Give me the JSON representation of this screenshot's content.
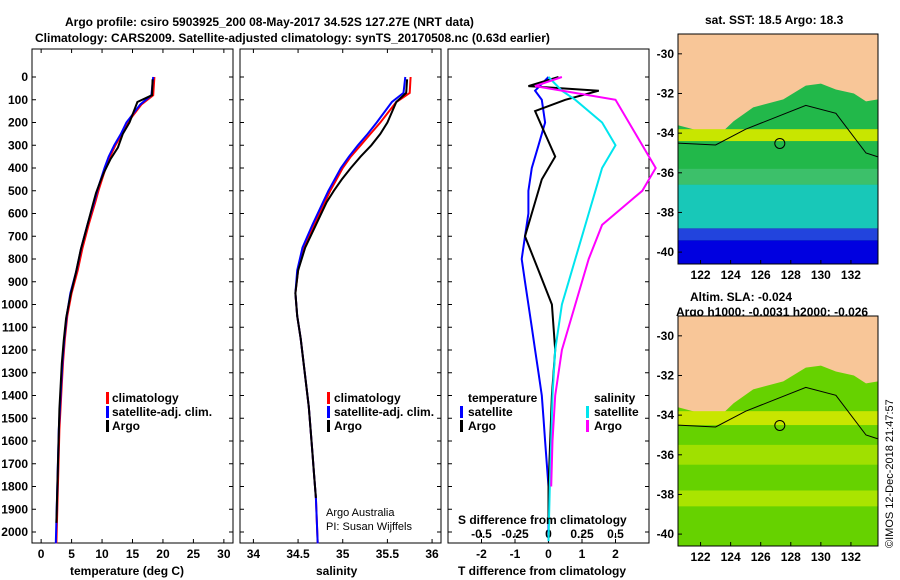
{
  "title": {
    "line1": "Argo profile: csiro 5903925_200 08-May-2017 34.52S 127.27E (NRT data)",
    "line2": "Climatology: CARS2009. Satellite-adjusted climatology: synTS_20170508.nc (0.63d earlier)"
  },
  "credit": {
    "line1": "Argo Australia",
    "line2": "PI: Susan Wijffels"
  },
  "side_stamp": "©IMOS 12-Dec-2018 21:47:57",
  "colors": {
    "climatology": "#ff0000",
    "satellite": "#0000ff",
    "argo": "#000000",
    "sal_satellite": "#00e5ee",
    "sal_argo": "#ff00ff",
    "land": "#f8c698"
  },
  "chart_data": [
    {
      "type": "line",
      "id": "temperature",
      "xlabel": "temperature (deg C)",
      "ylabel": "",
      "xlim": [
        -1.5,
        31.5
      ],
      "ylim": [
        2080,
        0
      ],
      "xticks": [
        "0",
        "5",
        "10",
        "15",
        "20",
        "25",
        "30"
      ],
      "yticks": [
        "0",
        "100",
        "200",
        "300",
        "400",
        "500",
        "600",
        "700",
        "800",
        "900",
        "1000",
        "1100",
        "1200",
        "1300",
        "1400",
        "1500",
        "1600",
        "1700",
        "1800",
        "1900",
        "2000"
      ],
      "legend": [
        "climatology",
        "satellite-adj. clim.",
        "Argo"
      ],
      "legend_position": "lower-right",
      "series": [
        {
          "name": "climatology",
          "color": "#ff0000",
          "x": [
            18.6,
            18.4,
            16.5,
            14.2,
            13.3,
            12.2,
            11.3,
            10.6,
            10.0,
            9.4,
            8.9,
            7.8,
            6.8,
            6.0,
            5.0,
            4.3,
            3.9,
            3.6,
            3.4,
            3.2,
            3.0,
            2.9,
            2.8,
            2.7,
            2.6,
            2.5
          ],
          "y": [
            0,
            80,
            120,
            200,
            250,
            300,
            350,
            400,
            450,
            500,
            550,
            650,
            750,
            850,
            950,
            1050,
            1150,
            1250,
            1350,
            1450,
            1550,
            1650,
            1750,
            1850,
            1950,
            2050
          ]
        },
        {
          "name": "satellite-adj. clim.",
          "color": "#0000ff",
          "x": [
            18.4,
            18.1,
            16.3,
            14.0,
            13.1,
            12.0,
            11.1,
            10.4,
            9.8,
            9.2,
            8.7,
            7.6,
            6.6,
            5.8,
            4.8,
            4.2,
            3.8,
            3.5,
            3.3,
            3.1,
            2.9,
            2.8,
            2.7,
            2.6,
            2.5,
            2.4
          ],
          "y": [
            0,
            80,
            120,
            200,
            250,
            300,
            350,
            400,
            450,
            500,
            550,
            650,
            750,
            850,
            950,
            1050,
            1150,
            1250,
            1350,
            1450,
            1550,
            1650,
            1750,
            1850,
            1950,
            2050
          ]
        },
        {
          "name": "Argo",
          "color": "#000000",
          "x": [
            18.3,
            18.2,
            15.8,
            14.5,
            13.4,
            12.6,
            11.4,
            10.3,
            9.7,
            9.0,
            8.5,
            7.5,
            6.5,
            5.7,
            4.8,
            4.1,
            3.7,
            3.4,
            3.2,
            3.0,
            2.9,
            2.8,
            2.7,
            2.6,
            2.5
          ],
          "y": [
            10,
            80,
            110,
            200,
            250,
            310,
            360,
            420,
            460,
            510,
            560,
            660,
            760,
            860,
            960,
            1060,
            1160,
            1260,
            1360,
            1460,
            1560,
            1660,
            1760,
            1860,
            1960
          ]
        }
      ]
    },
    {
      "type": "line",
      "id": "salinity",
      "xlabel": "salinity",
      "xlim": [
        33.85,
        36.1
      ],
      "ylim": [
        2080,
        0
      ],
      "xticks": [
        "34",
        "34.5",
        "35",
        "35.5",
        "36"
      ],
      "legend": [
        "climatology",
        "satellite-adj. clim.",
        "Argo"
      ],
      "legend_position": "lower-right",
      "series": [
        {
          "name": "climatology",
          "color": "#ff0000",
          "x": [
            35.76,
            35.75,
            35.6,
            35.42,
            35.31,
            35.2,
            35.09,
            35.0,
            34.93,
            34.86,
            34.8,
            34.68,
            34.56,
            34.5,
            34.47,
            34.49,
            34.53,
            34.56,
            34.59,
            34.62,
            34.64,
            34.66,
            34.68,
            34.7,
            34.72
          ],
          "y": [
            0,
            70,
            110,
            200,
            250,
            300,
            350,
            400,
            450,
            500,
            550,
            650,
            750,
            850,
            950,
            1050,
            1150,
            1250,
            1350,
            1450,
            1550,
            1650,
            1750,
            1850,
            2050
          ]
        },
        {
          "name": "satellite-adj. clim.",
          "color": "#0000ff",
          "x": [
            35.7,
            35.68,
            35.55,
            35.38,
            35.28,
            35.17,
            35.07,
            34.98,
            34.91,
            34.84,
            34.78,
            34.66,
            34.55,
            34.49,
            34.47,
            34.49,
            34.53,
            34.56,
            34.59,
            34.62,
            34.64,
            34.66,
            34.68,
            34.7,
            34.72
          ],
          "y": [
            0,
            70,
            110,
            200,
            250,
            300,
            350,
            400,
            450,
            500,
            550,
            650,
            750,
            850,
            950,
            1050,
            1150,
            1250,
            1350,
            1450,
            1550,
            1650,
            1750,
            1850,
            2050
          ]
        },
        {
          "name": "Argo",
          "color": "#000000",
          "x": [
            35.72,
            35.71,
            35.6,
            35.5,
            35.42,
            35.32,
            35.2,
            35.09,
            34.99,
            34.9,
            34.82,
            34.7,
            34.58,
            34.5,
            34.47,
            34.49,
            34.53,
            34.56,
            34.59,
            34.62,
            34.64,
            34.66,
            34.68,
            34.7
          ],
          "y": [
            10,
            70,
            110,
            200,
            250,
            300,
            350,
            400,
            450,
            500,
            550,
            650,
            750,
            850,
            950,
            1050,
            1150,
            1250,
            1350,
            1450,
            1550,
            1650,
            1750,
            1850
          ]
        }
      ]
    },
    {
      "type": "line",
      "id": "difference",
      "xlabel": "T difference from climatology",
      "xlabel2": "S difference from climatology",
      "xlim": [
        -3,
        3
      ],
      "xticks": [
        "-2",
        "-1",
        "0",
        "1",
        "2"
      ],
      "xticks2": [
        "-0.5",
        "-0.25",
        "0",
        "0.25",
        "0.5"
      ],
      "ylim": [
        2080,
        0
      ],
      "legend_left_title": "temperature",
      "legend_right_title": "salinity",
      "legend_left": [
        "satellite",
        "Argo"
      ],
      "legend_right": [
        "satellite",
        "Argo"
      ],
      "series": [
        {
          "name": "satellite",
          "group": "temperature",
          "color": "#0000ff",
          "x": [
            0,
            -0.4,
            -0.2,
            -0.1,
            -0.3,
            -0.5,
            -0.6,
            -0.6,
            -0.7,
            -0.8,
            -0.7,
            -0.6,
            -0.5,
            -0.4,
            -0.3,
            -0.2,
            -0.15,
            -0.1,
            -0.05,
            0,
            0,
            0
          ],
          "y": [
            0,
            60,
            100,
            200,
            300,
            400,
            500,
            600,
            700,
            800,
            900,
            1000,
            1100,
            1200,
            1300,
            1400,
            1500,
            1600,
            1700,
            1800,
            1900,
            2040
          ]
        },
        {
          "name": "Argo",
          "group": "temperature",
          "color": "#000000",
          "x": [
            0.3,
            -0.6,
            1.5,
            0.5,
            -0.4,
            -0.1,
            0.2,
            -0.2,
            -0.4,
            -0.7,
            -0.3,
            0.1,
            0.2,
            0.1,
            0.05,
            0,
            0
          ],
          "y": [
            0,
            40,
            60,
            100,
            150,
            250,
            350,
            450,
            550,
            700,
            850,
            1000,
            1200,
            1400,
            1600,
            1800,
            1950
          ]
        },
        {
          "name": "satellite",
          "group": "salinity",
          "color": "#00e5ee",
          "x": [
            0,
            0.1,
            0.2,
            0.4,
            0.5,
            0.4,
            0.35,
            0.3,
            0.25,
            0.2,
            0.15,
            0.1,
            0.05,
            0.03,
            0.02,
            0.01,
            0
          ],
          "y": [
            0,
            60,
            100,
            200,
            300,
            400,
            500,
            600,
            700,
            800,
            900,
            1000,
            1200,
            1400,
            1600,
            1800,
            2040
          ]
        },
        {
          "name": "Argo",
          "group": "salinity",
          "color": "#ff00ff",
          "x": [
            0.1,
            -0.1,
            0.5,
            0.6,
            0.7,
            0.8,
            0.75,
            0.7,
            0.6,
            0.4,
            0.3,
            0.2,
            0.1,
            0.05,
            0.03,
            0.02
          ],
          "y": [
            0,
            40,
            100,
            200,
            300,
            400,
            450,
            500,
            550,
            650,
            800,
            1000,
            1200,
            1400,
            1600,
            1800
          ]
        }
      ]
    }
  ],
  "maps": [
    {
      "title": "sat. SST: 18.5 Argo: 18.3",
      "lat_ticks": [
        "-30",
        "-32",
        "-34",
        "-36",
        "-38",
        "-40"
      ],
      "lon_ticks": [
        "122",
        "124",
        "126",
        "128",
        "130",
        "132"
      ],
      "marker": {
        "lat": -34.52,
        "lon": 127.27
      }
    },
    {
      "title_line1": "Altim. SLA: -0.024",
      "title_line2": "Argo h1000: -0.0031 h2000: -0.026",
      "lat_ticks": [
        "-30",
        "-32",
        "-34",
        "-36",
        "-38",
        "-40"
      ],
      "lon_ticks": [
        "122",
        "124",
        "126",
        "128",
        "130",
        "132"
      ],
      "marker": {
        "lat": -34.52,
        "lon": 127.27
      }
    }
  ]
}
